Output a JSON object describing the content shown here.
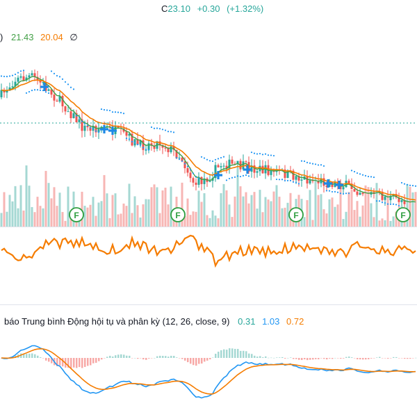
{
  "header": {
    "close_label": "C",
    "close_value": "23.10",
    "change": "+0.30",
    "change_pct": "(+1.32%)"
  },
  "ma_legend": {
    "prefix": ")",
    "value1": "21.43",
    "value2": "20.04",
    "empty_symbol": "∅"
  },
  "macd_legend": {
    "title": "báo Trung bình Động hội tụ và phân kỳ (12, 26, close, 9)",
    "histogram": "0.31",
    "macd": "1.03",
    "signal": "0.72"
  },
  "markers": {
    "f_label": "F"
  },
  "colors": {
    "up": "#26a69a",
    "down": "#ef5350",
    "ma_fast": "#43a047",
    "ma_slow": "#f57c00",
    "sar": "#2196f3",
    "macd_line": "#2196f3",
    "signal_line": "#f57c00",
    "rsi_line": "#f57c00",
    "hline": "#26a69a"
  },
  "icons": {
    "cross_marker": "plus-cross-icon",
    "f_marker": "f-circle-icon"
  }
}
